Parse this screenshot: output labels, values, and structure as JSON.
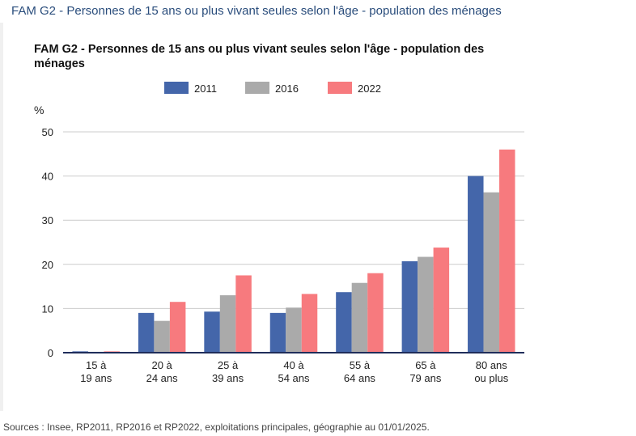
{
  "page": {
    "title": "FAM G2 - Personnes de 15 ans ou plus vivant seules selon l'âge - population des ménages",
    "sources": "Sources : Insee, RP2011, RP2016 et RP2022, exploitations principales, géographie au 01/01/2025."
  },
  "chart_data": {
    "type": "bar",
    "title": "FAM G2 - Personnes de 15 ans ou plus vivant seules selon l'âge - population des ménages",
    "ylabel": "%",
    "xlabel": "",
    "ylim": [
      0,
      50
    ],
    "yticks": [
      "0",
      "10",
      "20",
      "30",
      "40",
      "50"
    ],
    "grid": true,
    "legend_position": "top",
    "categories": [
      [
        "15 à",
        "19 ans"
      ],
      [
        "20 à",
        "24 ans"
      ],
      [
        "25 à",
        "39 ans"
      ],
      [
        "40 à",
        "54 ans"
      ],
      [
        "55 à",
        "64 ans"
      ],
      [
        "65 à",
        "79 ans"
      ],
      [
        "80 ans",
        "ou plus"
      ]
    ],
    "series": [
      {
        "name": "2011",
        "color": "#4466aa",
        "values": [
          0.3,
          9.0,
          9.3,
          9.0,
          13.7,
          20.7,
          40.0
        ]
      },
      {
        "name": "2016",
        "color": "#aaaaaa",
        "values": [
          0.2,
          7.2,
          13.0,
          10.2,
          15.8,
          21.7,
          36.3
        ]
      },
      {
        "name": "2022",
        "color": "#f77a7e",
        "values": [
          0.3,
          11.5,
          17.5,
          13.3,
          18.0,
          23.8,
          46.0
        ]
      }
    ]
  }
}
